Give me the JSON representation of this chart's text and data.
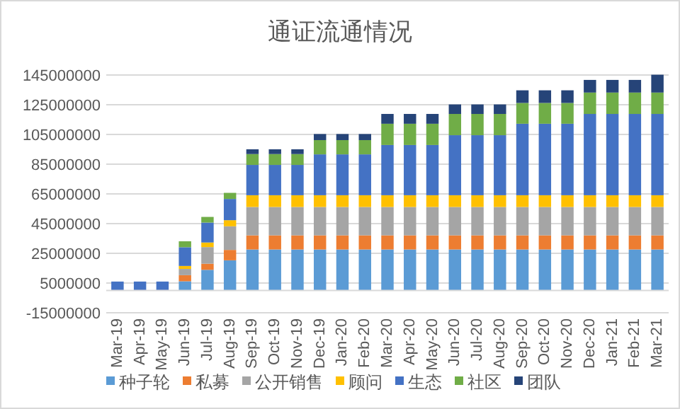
{
  "chart_data": {
    "type": "bar",
    "title": "通证流通情况",
    "stacked": true,
    "categories": [
      "Mar-19",
      "Apr-19",
      "May-19",
      "Jun-19",
      "Jul-19",
      "Aug-19",
      "Sep-19",
      "Oct-19",
      "Nov-19",
      "Dec-19",
      "Jan-20",
      "Feb-20",
      "Mar-20",
      "Apr-20",
      "May-20",
      "Jun-20",
      "Jul-20",
      "Aug-20",
      "Sep-20",
      "Oct-20",
      "Nov-20",
      "Dec-20",
      "Jan-21",
      "Feb-21",
      "Mar-21"
    ],
    "series": [
      {
        "name": "种子轮",
        "color": "#5b9bd5",
        "values": [
          0,
          0,
          0,
          6200000,
          13900000,
          20300000,
          27600000,
          27600000,
          27600000,
          27600000,
          27600000,
          27600000,
          27600000,
          27600000,
          27600000,
          27600000,
          27600000,
          27600000,
          27600000,
          27600000,
          27600000,
          27600000,
          27600000,
          27600000,
          27600000
        ]
      },
      {
        "name": "私募",
        "color": "#ed7d31",
        "values": [
          0,
          0,
          0,
          4100000,
          4100000,
          7000000,
          9500000,
          9500000,
          9500000,
          9500000,
          9500000,
          9500000,
          9500000,
          9500000,
          9500000,
          9500000,
          9500000,
          9500000,
          9500000,
          9500000,
          9500000,
          9500000,
          9500000,
          9500000,
          9500000
        ]
      },
      {
        "name": "公开销售",
        "color": "#a5a5a5",
        "values": [
          0,
          0,
          0,
          4200000,
          11200000,
          15900000,
          19100000,
          19100000,
          19100000,
          19100000,
          19100000,
          19100000,
          19100000,
          19100000,
          19100000,
          19100000,
          19100000,
          19100000,
          19100000,
          19100000,
          19100000,
          19100000,
          19100000,
          19100000,
          19100000
        ]
      },
      {
        "name": "顾问",
        "color": "#ffc000",
        "values": [
          0,
          0,
          0,
          2000000,
          3100000,
          4100000,
          7900000,
          7900000,
          7900000,
          7900000,
          7900000,
          7900000,
          7900000,
          7900000,
          7900000,
          7900000,
          7900000,
          7900000,
          7900000,
          7900000,
          7900000,
          7900000,
          7900000,
          7900000,
          7900000
        ]
      },
      {
        "name": "生态",
        "color": "#4472c4",
        "values": [
          6000000,
          6000000,
          6000000,
          12600000,
          13400000,
          14300000,
          20400000,
          20400000,
          20400000,
          27500000,
          27500000,
          27500000,
          33800000,
          33800000,
          33800000,
          40400000,
          40400000,
          40400000,
          48100000,
          48100000,
          48100000,
          54700000,
          54700000,
          54700000,
          54700000
        ]
      },
      {
        "name": "社区",
        "color": "#70ad47",
        "values": [
          0,
          0,
          0,
          4000000,
          3800000,
          4100000,
          7300000,
          7300000,
          7300000,
          9600000,
          9600000,
          9600000,
          14300000,
          14300000,
          14300000,
          14300000,
          14300000,
          14300000,
          14000000,
          14000000,
          14000000,
          14400000,
          14400000,
          14400000,
          14400000
        ]
      },
      {
        "name": "团队",
        "color": "#264478",
        "values": [
          0,
          0,
          0,
          0,
          0,
          0,
          3200000,
          3200000,
          3200000,
          4100000,
          4100000,
          4100000,
          6600000,
          6600000,
          6600000,
          6400000,
          6400000,
          6400000,
          8500000,
          8500000,
          8500000,
          8500000,
          8500000,
          8500000,
          12000000
        ]
      }
    ],
    "ylim": [
      -15000000,
      145000000
    ],
    "yticks": [
      -15000000,
      5000000,
      25000000,
      45000000,
      65000000,
      85000000,
      105000000,
      125000000,
      145000000
    ],
    "grid": "y",
    "legend": "bottom"
  }
}
